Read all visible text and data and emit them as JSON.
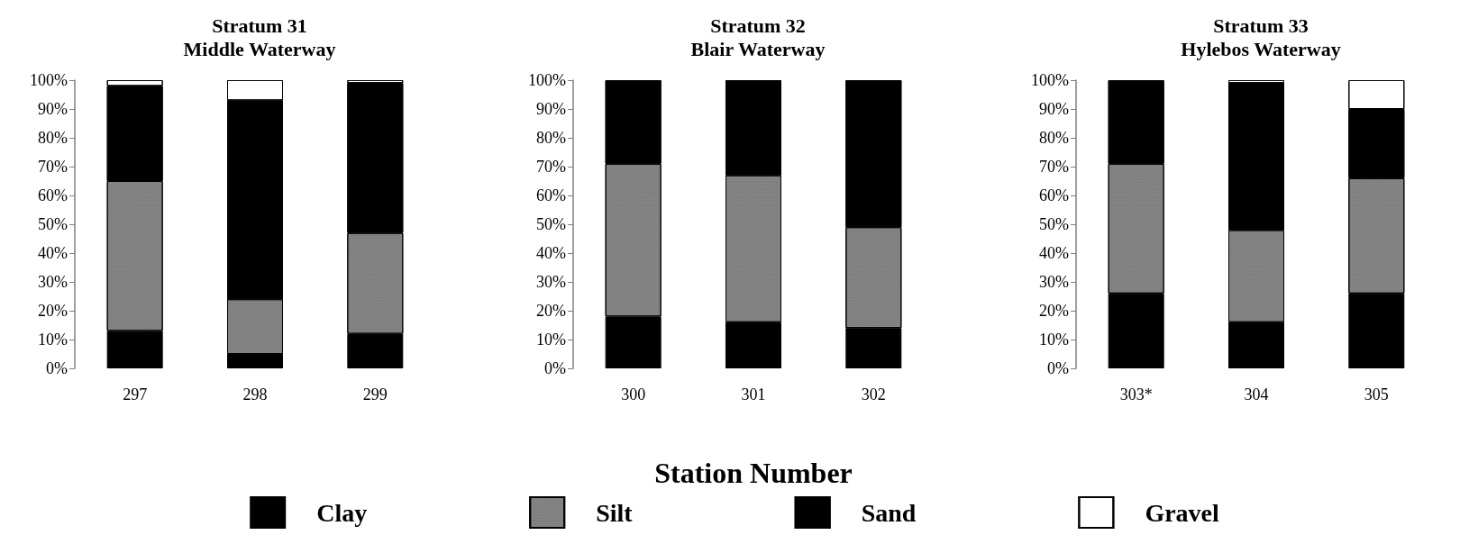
{
  "chart_data": [
    {
      "type": "bar",
      "stacked": true,
      "title": "Stratum 31",
      "subtitle": "Middle Waterway",
      "categories": [
        "297",
        "298",
        "299"
      ],
      "series": [
        {
          "name": "Clay",
          "color": "#000000",
          "values": [
            13,
            5,
            12
          ]
        },
        {
          "name": "Silt",
          "color": "#808080",
          "values": [
            52,
            19,
            35
          ]
        },
        {
          "name": "Sand",
          "color": "#000000",
          "values": [
            33,
            69,
            52
          ]
        },
        {
          "name": "Gravel",
          "color": "#ffffff",
          "values": [
            2,
            7,
            1
          ]
        }
      ],
      "ylim": [
        0,
        100
      ],
      "yticks": [
        {
          "value": 0,
          "label": "0%"
        },
        {
          "value": 10,
          "label": "10%"
        },
        {
          "value": 20,
          "label": "20%"
        },
        {
          "value": 30,
          "label": "30%"
        },
        {
          "value": 40,
          "label": "40%"
        },
        {
          "value": 50,
          "label": "50%"
        },
        {
          "value": 60,
          "label": "60%"
        },
        {
          "value": 70,
          "label": "70%"
        },
        {
          "value": 80,
          "label": "80%"
        },
        {
          "value": 90,
          "label": "90%"
        },
        {
          "value": 100,
          "label": "100%"
        }
      ],
      "grid": false,
      "legend": "bottom"
    },
    {
      "type": "bar",
      "stacked": true,
      "title": "Stratum 32",
      "subtitle": "Blair Waterway",
      "xlabel": "Station Number",
      "categories": [
        "300",
        "301",
        "302"
      ],
      "series": [
        {
          "name": "Clay",
          "color": "#000000",
          "values": [
            18,
            16,
            14
          ]
        },
        {
          "name": "Silt",
          "color": "#808080",
          "values": [
            53,
            51,
            35
          ]
        },
        {
          "name": "Sand",
          "color": "#000000",
          "values": [
            29,
            33,
            51
          ]
        },
        {
          "name": "Gravel",
          "color": "#ffffff",
          "values": [
            0,
            0,
            null
          ]
        }
      ],
      "ylim": [
        0,
        100
      ],
      "yticks": [
        {
          "value": 0,
          "label": "0%"
        },
        {
          "value": 10,
          "label": "10%"
        },
        {
          "value": 20,
          "label": "20%"
        },
        {
          "value": 30,
          "label": "30%"
        },
        {
          "value": 40,
          "label": "40%"
        },
        {
          "value": 50,
          "label": "50%"
        },
        {
          "value": 60,
          "label": "60%"
        },
        {
          "value": 70,
          "label": "70%"
        },
        {
          "value": 80,
          "label": "80%"
        },
        {
          "value": 90,
          "label": "90%"
        },
        {
          "value": 100,
          "label": "100%"
        }
      ],
      "grid": false,
      "legend": "bottom"
    },
    {
      "type": "bar",
      "stacked": true,
      "title": "Stratum 33",
      "subtitle": "Hylebos Waterway",
      "categories": [
        "303*",
        "304",
        "305"
      ],
      "series": [
        {
          "name": "Clay",
          "color": "#000000",
          "values": [
            26,
            16,
            26
          ]
        },
        {
          "name": "Silt",
          "color": "#808080",
          "values": [
            45,
            32,
            40
          ]
        },
        {
          "name": "Sand",
          "color": "#000000",
          "values": [
            29,
            51,
            24
          ]
        },
        {
          "name": "Gravel",
          "color": "#ffffff",
          "values": [
            0,
            1,
            10
          ]
        }
      ],
      "ylim": [
        0,
        100
      ],
      "yticks": [
        {
          "value": 0,
          "label": "0%"
        },
        {
          "value": 10,
          "label": "10%"
        },
        {
          "value": 20,
          "label": "20%"
        },
        {
          "value": 30,
          "label": "30%"
        },
        {
          "value": 40,
          "label": "40%"
        },
        {
          "value": 50,
          "label": "50%"
        },
        {
          "value": 60,
          "label": "60%"
        },
        {
          "value": 70,
          "label": "70%"
        },
        {
          "value": 80,
          "label": "80%"
        },
        {
          "value": 90,
          "label": "90%"
        },
        {
          "value": 100,
          "label": "100%"
        }
      ],
      "grid": false,
      "legend": "bottom"
    }
  ]
}
